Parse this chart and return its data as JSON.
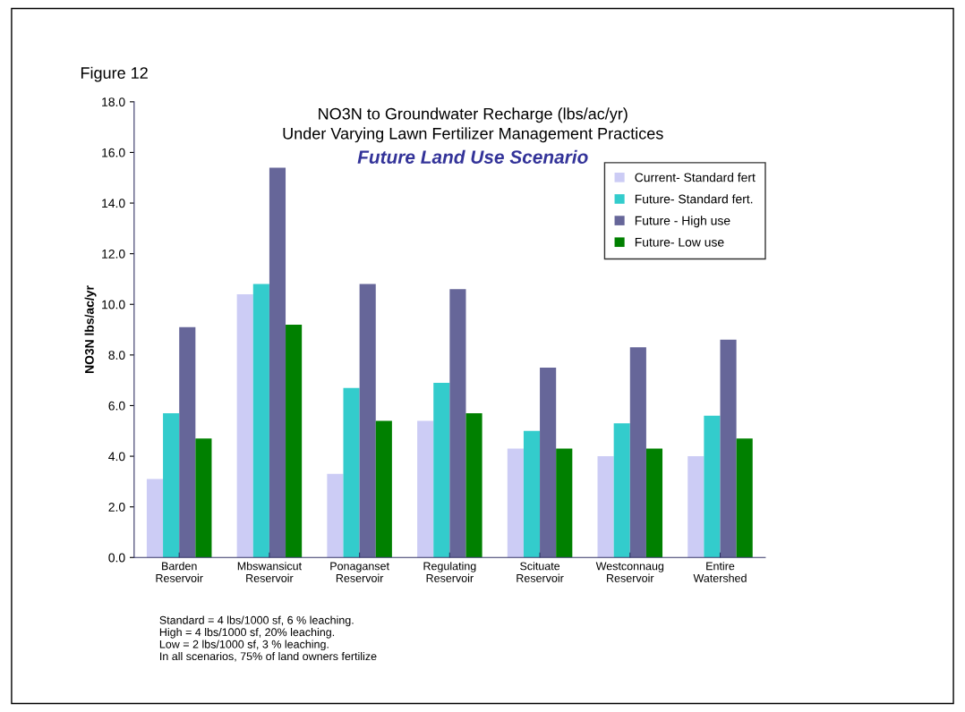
{
  "chart_data": {
    "type": "bar",
    "title": "NO3N to Groundwater Recharge (lbs/ac/yr)\nUnder Varying Lawn Fertilizer Management Practices",
    "subtitle": "Future Land Use Scenario",
    "ylabel": "NO3N lbs/ac/yr",
    "categories": [
      "Barden\nReservoir",
      "Mbswansicut\nReservoir",
      "Ponaganset\nReservoir",
      "Regulating\nReservoir",
      "Scituate\nReservoir",
      "Westconnaug\nReservoir",
      "Entire\nWatershed"
    ],
    "series": [
      {
        "name": "Current- Standard fert",
        "color": "#ccccf5",
        "values": [
          3.1,
          10.4,
          3.3,
          5.4,
          4.3,
          4.0,
          4.0
        ]
      },
      {
        "name": "Future- Standard fert.",
        "color": "#33cccc",
        "values": [
          5.7,
          10.8,
          6.7,
          6.9,
          5.0,
          5.3,
          5.6
        ]
      },
      {
        "name": "Future - High use",
        "color": "#666699",
        "values": [
          9.1,
          15.4,
          10.8,
          10.6,
          7.5,
          8.3,
          8.6
        ]
      },
      {
        "name": "Future- Low use",
        "color": "#008000",
        "values": [
          4.7,
          9.2,
          5.4,
          5.7,
          4.3,
          4.3,
          4.7
        ]
      }
    ],
    "ylim": [
      0,
      18
    ],
    "yticks": [
      {
        "value": 0,
        "label": "0.0"
      },
      {
        "value": 2,
        "label": "2.0"
      },
      {
        "value": 4,
        "label": "4.0"
      },
      {
        "value": 6,
        "label": "6.0"
      },
      {
        "value": 8,
        "label": "8.0"
      },
      {
        "value": 10,
        "label": "10.0"
      },
      {
        "value": 12,
        "label": "12.0"
      },
      {
        "value": 14,
        "label": "14.0"
      },
      {
        "value": 16,
        "label": "16.0"
      },
      {
        "value": 18,
        "label": "18.0"
      }
    ],
    "grid": false,
    "legend": "top right",
    "annotations": [
      "Figure 12",
      "Standard = 4 lbs/1000 sf, 6 % leaching.\nHigh = 4 lbs/1000 sf, 20% leaching.\nLow = 2 lbs/1000 sf, 3 % leaching.\nIn all scenarios, 75% of land owners fertilize"
    ]
  }
}
